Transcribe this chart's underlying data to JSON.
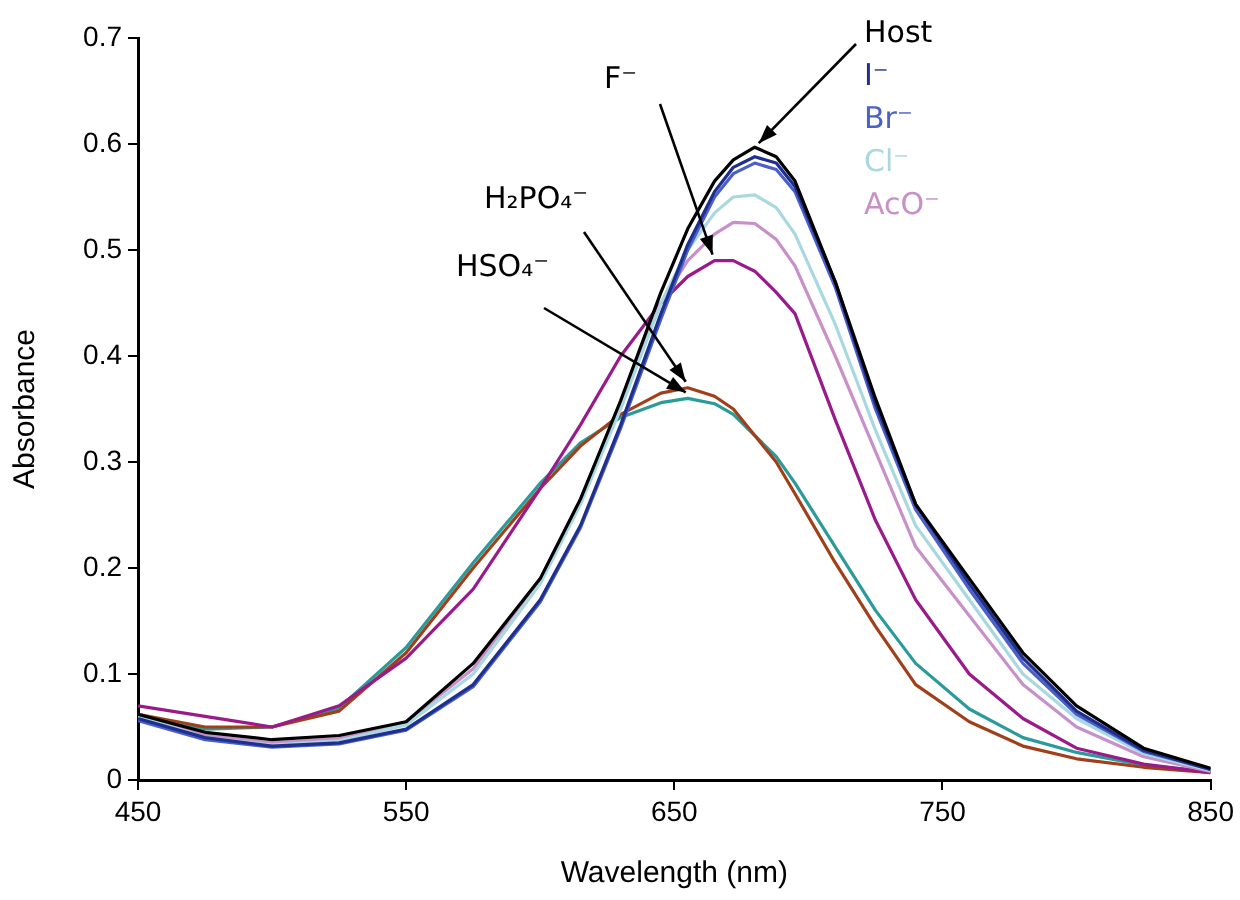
{
  "chart_data": {
    "type": "line",
    "xlabel": "Wavelength (nm)",
    "ylabel": "Absorbance",
    "x": [
      450,
      475,
      500,
      525,
      550,
      575,
      600,
      615,
      630,
      645,
      655,
      665,
      672,
      680,
      688,
      695,
      710,
      725,
      740,
      760,
      780,
      800,
      825,
      850
    ],
    "series": [
      {
        "name": "Host",
        "color": "#000000",
        "values": [
          0.062,
          0.045,
          0.038,
          0.042,
          0.055,
          0.11,
          0.19,
          0.265,
          0.358,
          0.46,
          0.52,
          0.565,
          0.585,
          0.597,
          0.588,
          0.565,
          0.47,
          0.36,
          0.26,
          0.19,
          0.12,
          0.07,
          0.03,
          0.011
        ]
      },
      {
        "name": "I⁻",
        "color": "#1f2f8f",
        "values": [
          0.058,
          0.04,
          0.032,
          0.035,
          0.048,
          0.09,
          0.17,
          0.24,
          0.335,
          0.44,
          0.505,
          0.555,
          0.578,
          0.588,
          0.582,
          0.56,
          0.47,
          0.355,
          0.26,
          0.185,
          0.115,
          0.065,
          0.028,
          0.01
        ]
      },
      {
        "name": "Br⁻",
        "color": "#4a5fc8",
        "values": [
          0.056,
          0.038,
          0.031,
          0.034,
          0.047,
          0.088,
          0.168,
          0.238,
          0.332,
          0.435,
          0.5,
          0.55,
          0.572,
          0.582,
          0.576,
          0.555,
          0.465,
          0.35,
          0.255,
          0.18,
          0.11,
          0.062,
          0.027,
          0.01
        ]
      },
      {
        "name": "Cl⁻",
        "color": "#a8d8e0",
        "values": [
          0.06,
          0.04,
          0.033,
          0.037,
          0.052,
          0.1,
          0.185,
          0.26,
          0.35,
          0.45,
          0.5,
          0.535,
          0.55,
          0.552,
          0.54,
          0.515,
          0.43,
          0.33,
          0.24,
          0.17,
          0.1,
          0.058,
          0.025,
          0.009
        ]
      },
      {
        "name": "AcO⁻",
        "color": "#c890c8",
        "values": [
          0.06,
          0.042,
          0.035,
          0.039,
          0.055,
          0.105,
          0.19,
          0.265,
          0.355,
          0.45,
          0.49,
          0.515,
          0.526,
          0.525,
          0.51,
          0.485,
          0.4,
          0.31,
          0.22,
          0.155,
          0.09,
          0.05,
          0.022,
          0.008
        ]
      },
      {
        "name": "F⁻",
        "color": "#9a1a8a",
        "values": [
          0.07,
          0.06,
          0.05,
          0.07,
          0.115,
          0.18,
          0.275,
          0.335,
          0.4,
          0.45,
          0.475,
          0.49,
          0.49,
          0.48,
          0.46,
          0.44,
          0.34,
          0.245,
          0.17,
          0.1,
          0.058,
          0.03,
          0.015,
          0.007
        ]
      },
      {
        "name": "H₂PO₄⁻",
        "color": "#a0401a",
        "values": [
          0.062,
          0.05,
          0.05,
          0.065,
          0.12,
          0.2,
          0.275,
          0.315,
          0.345,
          0.365,
          0.37,
          0.362,
          0.35,
          0.325,
          0.3,
          0.27,
          0.205,
          0.145,
          0.09,
          0.055,
          0.032,
          0.02,
          0.012,
          0.007
        ]
      },
      {
        "name": "HSO₄⁻",
        "color": "#2a9a9a",
        "values": [
          0.058,
          0.048,
          0.05,
          0.068,
          0.125,
          0.205,
          0.28,
          0.318,
          0.342,
          0.356,
          0.36,
          0.355,
          0.345,
          0.325,
          0.305,
          0.28,
          0.22,
          0.16,
          0.11,
          0.067,
          0.04,
          0.026,
          0.014,
          0.008
        ]
      }
    ],
    "xlim": [
      450,
      850
    ],
    "xticks": [
      450,
      550,
      650,
      750,
      850
    ],
    "ylim": [
      0,
      0.7
    ],
    "yticks": [
      0,
      0.1,
      0.2,
      0.3,
      0.4,
      0.5,
      0.6,
      0.7
    ],
    "grid": false,
    "legend": false,
    "marker": "none",
    "line_style": "solid"
  }
}
